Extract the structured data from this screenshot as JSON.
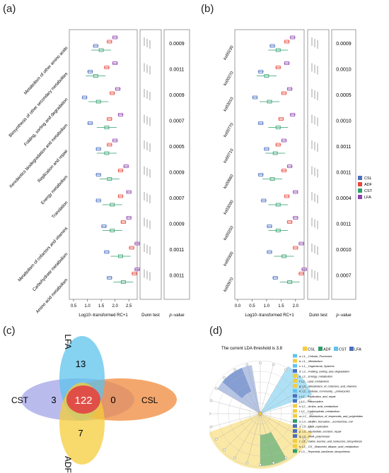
{
  "panels": {
    "a": "(a)",
    "b": "(b)",
    "c": "(c)",
    "d": "(d)"
  },
  "colors": {
    "CSL": "#4a6fbf",
    "ADF": "#e8473c",
    "CST": "#2e9e6b",
    "LFA": "#8e44ad",
    "venn_LFA": "#5ec3ec",
    "venn_CSL": "#f08a3c",
    "venn_ADF": "#f5cc3a",
    "venn_CST": "#9d9ee6",
    "venn_center": "#e04f47"
  },
  "panel_a": {
    "xlabel": "Log10−transformed RC+1",
    "dunn_label": "Dunn test",
    "p_label": "p−value",
    "x_ticks": [
      "0.5",
      "1.0",
      "1.5",
      "2.0",
      "2.5"
    ],
    "rows": [
      {
        "name": "Metabolism of other amino acids",
        "p": "0.0009"
      },
      {
        "name": "Biosynthesis of other secondary metabolites",
        "p": "0.0011"
      },
      {
        "name": "Folding, sorting and degradation",
        "p": "0.0009"
      },
      {
        "name": "Xenobiotics biodegradation and metabolism",
        "p": "0.0007"
      },
      {
        "name": "Replication and repair",
        "p": "0.0005"
      },
      {
        "name": "Energy metabolism",
        "p": "0.0009"
      },
      {
        "name": "Translation",
        "p": "0.0007"
      },
      {
        "name": "Metabolism of cofactors and vitamins",
        "p": "0.0009"
      },
      {
        "name": "Carbohydrate metabolism",
        "p": "0.0011"
      },
      {
        "name": "Amino acid metabolism",
        "p": "0.0011"
      }
    ]
  },
  "panel_b": {
    "xlabel": "Log10−transformed RC+1",
    "dunn_label": "Dunn test",
    "p_label": "p−value",
    "x_ticks": [
      "0.0",
      "0.5",
      "1.0",
      "1.5",
      "2.0"
    ],
    "rows": [
      {
        "name": "ko00230",
        "p": "0.0009"
      },
      {
        "name": "ko00270",
        "p": "0.0010"
      },
      {
        "name": "ko03010",
        "p": "0.0005"
      },
      {
        "name": "ko00770",
        "p": "0.0010"
      },
      {
        "name": "ko00710",
        "p": "0.0011"
      },
      {
        "name": "ko00660",
        "p": "0.0011"
      },
      {
        "name": "ko03030",
        "p": "0.0004"
      },
      {
        "name": "ko00250",
        "p": "0.0011"
      },
      {
        "name": "ko00300",
        "p": "0.0010"
      },
      {
        "name": "ko00970",
        "p": "0.0007"
      }
    ],
    "legend": [
      "CSL",
      "ADF",
      "CST",
      "LFA"
    ]
  },
  "panel_c": {
    "labels": {
      "LFA": "LFA",
      "CSL": "CSL",
      "ADF": "ADF",
      "CST": "CST"
    },
    "counts": {
      "LFA": "13",
      "CSL": "0",
      "ADF": "7",
      "CST": "3",
      "center": "122"
    }
  },
  "panel_d": {
    "title": "The current LDA threshold is 3.8",
    "legend_groups": [
      "CSL",
      "ADF",
      "CST",
      "LFA"
    ],
    "entries": [
      {
        "text": "a: L1__Cellular_Processes",
        "color": "#5ec3ec"
      },
      {
        "text": "b: L1__Metabolism",
        "color": "#f5cc3a"
      },
      {
        "text": "c: L1__Organismal_Systems",
        "color": "#5ec3ec"
      },
      {
        "text": "d: L2__Folding_sorting_and_degradation",
        "color": "#4a6fbf"
      },
      {
        "text": "e: L2__Energy_metabolism",
        "color": "#f5cc3a"
      },
      {
        "text": "f: L2__Lipid_metabolism",
        "color": "#f5cc3a"
      },
      {
        "text": "g: L2__Metabolism_of_cofactors_and_vitamins",
        "color": "#f5cc3a"
      },
      {
        "text": "h: L2__Cellular_community__prokaryotes",
        "color": "#5ec3ec"
      },
      {
        "text": "i: L2__Replication_and_repair",
        "color": "#4a6fbf"
      },
      {
        "text": "j: L2__Transcription",
        "color": "#4a6fbf"
      },
      {
        "text": "k: L2__Amino_acid_metabolism",
        "color": "#f5cc3a"
      },
      {
        "text": "l: L2__Carbohydrate_metabolism",
        "color": "#f5cc3a"
      },
      {
        "text": "m: L2__Metabolism_of_terpenoids_and_polyketides",
        "color": "#f5cc3a"
      },
      {
        "text": "n: L3__Biofilm_formation__Escherichia_coli",
        "color": "#2e9e6b"
      },
      {
        "text": "o: L3__DNA_replication",
        "color": "#4a6fbf"
      },
      {
        "text": "p: L3__Nucleotide_excision_repair",
        "color": "#4a6fbf"
      },
      {
        "text": "q: L3__RNA_polymerase",
        "color": "#4a6fbf"
      },
      {
        "text": "r: L3__Valine_leucine_and_isoleucine_biosynthesis",
        "color": "#f5cc3a"
      },
      {
        "text": "s: L3__C5__Branched_dibasic_acid_metabolism",
        "color": "#f5cc3a"
      },
      {
        "text": "t: L3__Terpenoid_backbone_biosynthesis",
        "color": "#2e9e6b"
      }
    ]
  }
}
